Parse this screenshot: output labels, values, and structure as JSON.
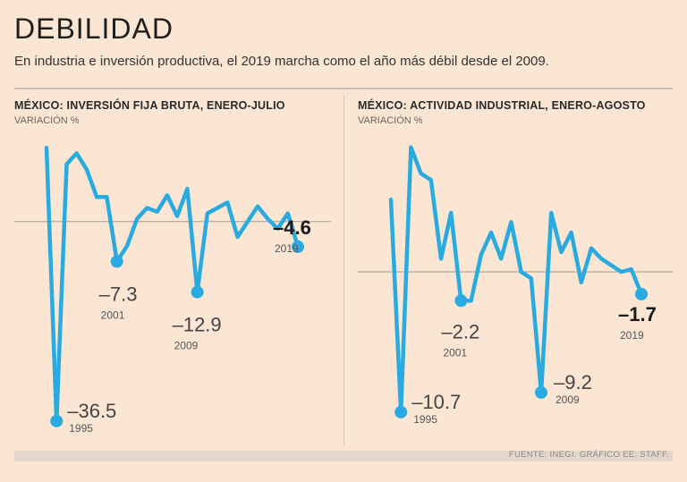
{
  "header": {
    "title": "DEBILIDAD",
    "subtitle": "En industria e inversión productiva, el 2019 marcha como el año más débil desde el 2009."
  },
  "source": "FUENTE: INEGI. GRÁFICO EE: STAFF.",
  "colors": {
    "line": "#29abe2",
    "background": "#fbe6d4",
    "zero": "#a39a93"
  },
  "chart_data": [
    {
      "type": "line",
      "title": "MÉXICO: INVERSIÓN FIJA BRUTA, ENERO-JULIO",
      "ylabel": "VARIACIÓN %",
      "x": [
        1994,
        1995,
        1996,
        1997,
        1998,
        1999,
        2000,
        2001,
        2002,
        2003,
        2004,
        2005,
        2006,
        2007,
        2008,
        2009,
        2010,
        2011,
        2012,
        2013,
        2014,
        2015,
        2016,
        2017,
        2018,
        2019
      ],
      "values": [
        13.5,
        -36.5,
        10.5,
        12.5,
        9.5,
        4.5,
        4.5,
        -7.3,
        -4.5,
        0.5,
        2.5,
        1.8,
        4.8,
        1.0,
        6.0,
        -12.9,
        1.5,
        2.5,
        3.5,
        -2.8,
        0.0,
        2.8,
        0.5,
        -1.3,
        1.5,
        -4.6
      ],
      "ylim": [
        -38,
        16
      ],
      "annotations": [
        {
          "index": 1,
          "value": "-36.5",
          "year": "1995"
        },
        {
          "index": 7,
          "value": "-7.3",
          "year": "2001"
        },
        {
          "index": 15,
          "value": "-12.9",
          "year": "2009"
        },
        {
          "index": 25,
          "value": "-4.6",
          "year": "2019",
          "bold": true
        }
      ]
    },
    {
      "type": "line",
      "title": "MÉXICO: ACTIVIDAD INDUSTRIAL, ENERO-AGOSTO",
      "ylabel": "VARIACIÓN %",
      "x": [
        1994,
        1995,
        1996,
        1997,
        1998,
        1999,
        2000,
        2001,
        2002,
        2003,
        2004,
        2005,
        2006,
        2007,
        2008,
        2009,
        2010,
        2011,
        2012,
        2013,
        2014,
        2015,
        2016,
        2017,
        2018,
        2019
      ],
      "values": [
        5.5,
        -10.7,
        9.5,
        7.5,
        7.0,
        1.0,
        4.5,
        -2.2,
        -2.2,
        1.3,
        3.0,
        1.0,
        3.8,
        0.0,
        -0.5,
        -9.2,
        4.5,
        1.5,
        3.0,
        -0.8,
        1.8,
        1.0,
        0.5,
        0.0,
        0.2,
        -1.7
      ],
      "ylim": [
        -12,
        10.5
      ],
      "annotations": [
        {
          "index": 1,
          "value": "-10.7",
          "year": "1995"
        },
        {
          "index": 7,
          "value": "-2.2",
          "year": "2001"
        },
        {
          "index": 15,
          "value": "-9.2",
          "year": "2009"
        },
        {
          "index": 25,
          "value": "-1.7",
          "year": "2019",
          "bold": true
        }
      ]
    }
  ]
}
